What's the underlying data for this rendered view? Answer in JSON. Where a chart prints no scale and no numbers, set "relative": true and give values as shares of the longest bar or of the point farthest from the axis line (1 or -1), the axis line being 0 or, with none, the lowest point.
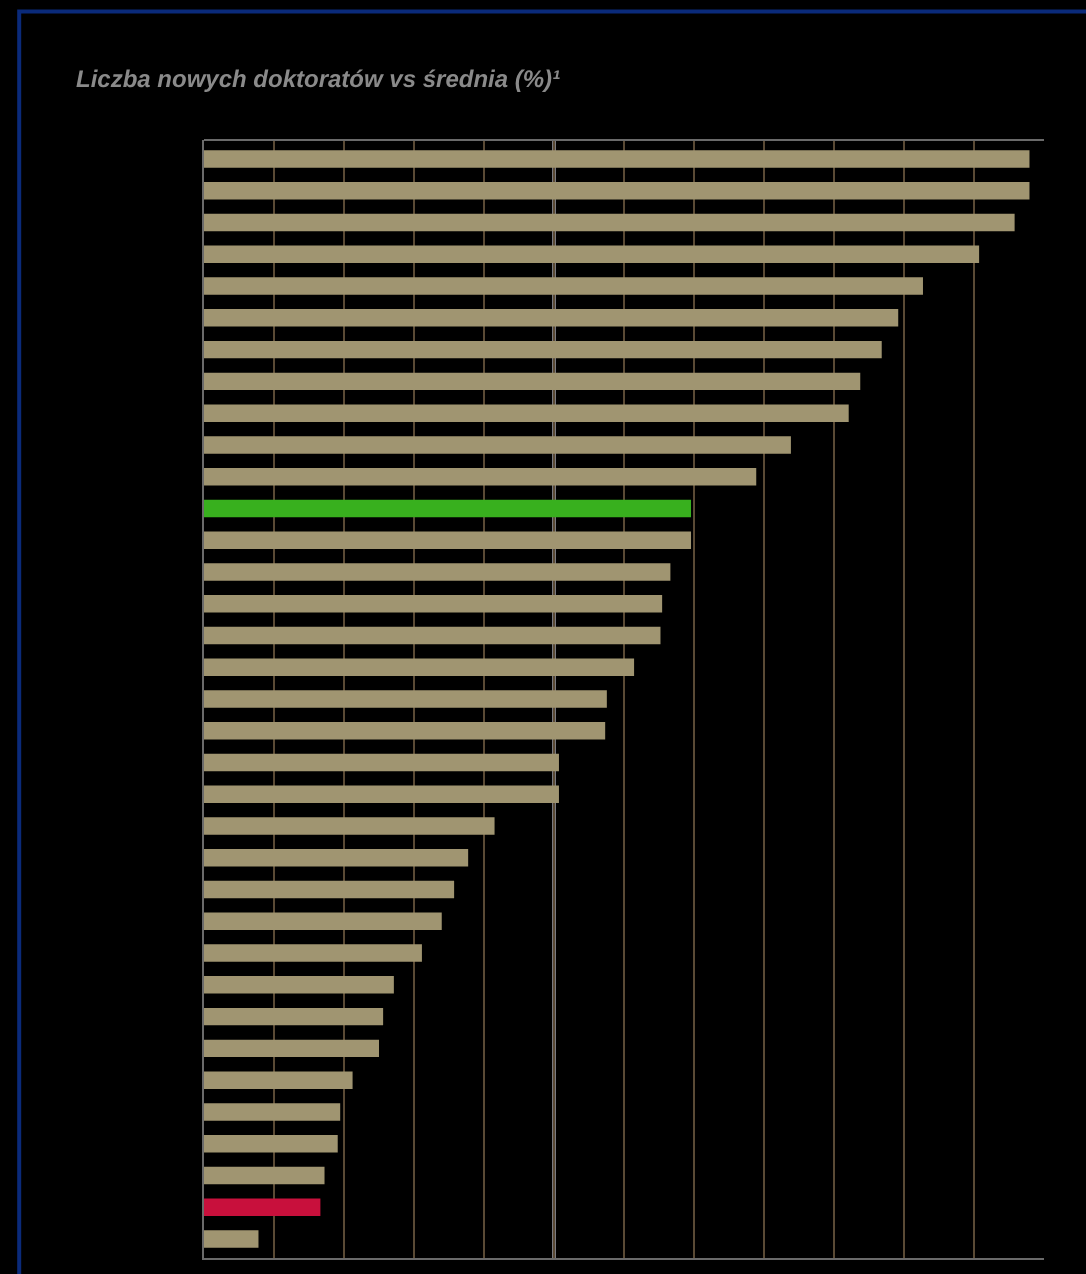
{
  "chart_data": {
    "type": "bar",
    "orientation": "horizontal",
    "relative": true,
    "title": "Liczba nowych doktoratów vs średnia (%)¹",
    "categories": [
      null,
      null,
      null,
      null,
      null,
      null,
      null,
      null,
      null,
      null,
      null,
      null,
      null,
      null,
      null,
      null,
      null,
      null,
      null,
      null,
      null,
      null,
      null,
      null,
      null,
      null,
      null,
      null,
      null,
      null,
      null,
      null,
      null,
      null,
      null
    ],
    "values": [
      1,
      1,
      0.982,
      0.939,
      0.871,
      0.841,
      0.821,
      0.795,
      0.781,
      0.711,
      0.669,
      0.59,
      0.59,
      0.565,
      0.555,
      0.553,
      0.521,
      0.488,
      0.486,
      0.43,
      0.43,
      0.352,
      0.32,
      0.303,
      0.288,
      0.264,
      0.23,
      0.217,
      0.212,
      0.18,
      0.165,
      0.162,
      0.146,
      0.141,
      0.066
    ],
    "colors": [
      "#a09571",
      "#a09571",
      "#a09571",
      "#a09571",
      "#a09571",
      "#a09571",
      "#a09571",
      "#a09571",
      "#a09571",
      "#a09571",
      "#a09571",
      "#38b01e",
      "#a09571",
      "#a09571",
      "#a09571",
      "#a09571",
      "#a09571",
      "#a09571",
      "#a09571",
      "#a09571",
      "#a09571",
      "#a09571",
      "#a09571",
      "#a09571",
      "#a09571",
      "#a09571",
      "#a09571",
      "#a09571",
      "#a09571",
      "#a09571",
      "#a09571",
      "#a09571",
      "#a09571",
      "#c8103c",
      "#a09571"
    ],
    "ref_lines": [
      {
        "axis": "x",
        "value": 0.424,
        "color": "#7a7a80"
      }
    ],
    "grid": "x",
    "legend": false
  }
}
